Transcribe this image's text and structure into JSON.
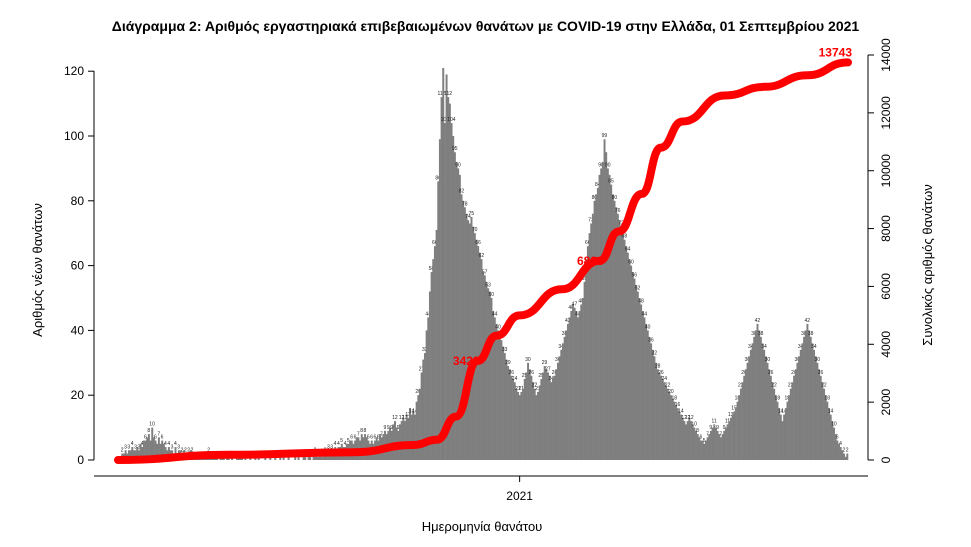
{
  "chart_data": {
    "type": "bar",
    "title": "Διάγραμμα 2: Αριθμός εργαστηριακά επιβεβαιωμένων θανάτων με COVID-19 στην Ελλάδα, 01 Σεπτεμβρίου 2021",
    "xlabel": "Ημερομηνία θανάτου",
    "ylabel": "Αριθμός νέων θανάτων",
    "y2label": "Συνολικός αριθμός θανάτων",
    "x_tick_labels": [
      "2021"
    ],
    "x_tick_year": 2021,
    "x_range": [
      "2020-03-11",
      "2021-08-31"
    ],
    "ylim": [
      0,
      125
    ],
    "y_ticks": [
      0,
      20,
      40,
      60,
      80,
      100,
      120
    ],
    "y2lim": [
      0,
      14000
    ],
    "y2_ticks": [
      0,
      2000,
      4000,
      6000,
      8000,
      10000,
      12000,
      14000
    ],
    "grid": false,
    "bar_color": "#7f7f7f",
    "line_color": "#ff0000",
    "annotations": [
      "3423",
      "6886",
      "13743"
    ],
    "daily_deaths": {
      "note_units": "deaths per day, approximate, read from bar heights",
      "x_start": "2020-03-11",
      "values": [
        1,
        1,
        2,
        2,
        3,
        2,
        3,
        3,
        4,
        3,
        3,
        4,
        3,
        5,
        4,
        6,
        6,
        7,
        8,
        6,
        10,
        7,
        6,
        5,
        7,
        5,
        6,
        5,
        4,
        3,
        4,
        3,
        3,
        2,
        4,
        2,
        3,
        3,
        2,
        3,
        2,
        2,
        2,
        3,
        2,
        2,
        1,
        2,
        1,
        1,
        1,
        2,
        1,
        1,
        2,
        1,
        1,
        1,
        1,
        1,
        0,
        1,
        1,
        1,
        0,
        1,
        1,
        0,
        1,
        0,
        0,
        1,
        1,
        1,
        1,
        0,
        1,
        0,
        0,
        1,
        0,
        0,
        1,
        0,
        1,
        0,
        0,
        0,
        1,
        0,
        0,
        1,
        0,
        0,
        1,
        0,
        0,
        1,
        0,
        1,
        0,
        0,
        1,
        0,
        0,
        0,
        1,
        0,
        1,
        0,
        0,
        1,
        1,
        0,
        1,
        1,
        0,
        1,
        2,
        1,
        1,
        2,
        1,
        2,
        2,
        2,
        3,
        2,
        3,
        3,
        4,
        3,
        4,
        4,
        5,
        4,
        4,
        5,
        5,
        6,
        6,
        5,
        6,
        7,
        7,
        6,
        8,
        7,
        8,
        7,
        6,
        5,
        6,
        5,
        6,
        7,
        6,
        8,
        7,
        8,
        9,
        8,
        9,
        10,
        9,
        11,
        12,
        10,
        9,
        11,
        12,
        13,
        12,
        14,
        13,
        16,
        14,
        15,
        14,
        18,
        20,
        22,
        27,
        31,
        33,
        40,
        44,
        52,
        58,
        62,
        66,
        71,
        86,
        99,
        112,
        121,
        104,
        119,
        112,
        110,
        104,
        100,
        95,
        92,
        90,
        88,
        82,
        80,
        78,
        76,
        74,
        73,
        75,
        72,
        70,
        68,
        66,
        64,
        62,
        58,
        57,
        55,
        53,
        52,
        50,
        46,
        44,
        42,
        40,
        39,
        37,
        35,
        33,
        31,
        29,
        28,
        26,
        25,
        24,
        22,
        21,
        20,
        21,
        22,
        25,
        27,
        30,
        28,
        26,
        24,
        22,
        20,
        21,
        23,
        25,
        27,
        29,
        28,
        27,
        26,
        24,
        25,
        26,
        28,
        30,
        32,
        34,
        36,
        38,
        40,
        42,
        44,
        46,
        48,
        47,
        46,
        44,
        46,
        48,
        50,
        55,
        62,
        66,
        70,
        73,
        76,
        80,
        82,
        84,
        88,
        90,
        92,
        99,
        95,
        90,
        88,
        85,
        82,
        80,
        78,
        76,
        74,
        72,
        70,
        68,
        66,
        64,
        62,
        60,
        58,
        56,
        54,
        52,
        50,
        48,
        46,
        44,
        42,
        40,
        38,
        36,
        34,
        32,
        30,
        28,
        27,
        26,
        25,
        24,
        23,
        22,
        21,
        20,
        19,
        18,
        17,
        16,
        15,
        14,
        13,
        12,
        11,
        12,
        13,
        12,
        11,
        10,
        9,
        8,
        7,
        6,
        6,
        5,
        6,
        7,
        8,
        9,
        10,
        11,
        10,
        9,
        8,
        7,
        8,
        9,
        10,
        11,
        12,
        13,
        14,
        15,
        16,
        18,
        20,
        22,
        24,
        26,
        28,
        30,
        32,
        34,
        36,
        38,
        40,
        42,
        40,
        38,
        36,
        34,
        32,
        30,
        28,
        26,
        24,
        22,
        20,
        18,
        16,
        14,
        12,
        14,
        16,
        18,
        20,
        22,
        24,
        26,
        28,
        30,
        32,
        34,
        36,
        38,
        40,
        42,
        40,
        38,
        36,
        34,
        32,
        30,
        28,
        26,
        24,
        22,
        20,
        18,
        16,
        14,
        12,
        10,
        8,
        6,
        5,
        4,
        3,
        2,
        1,
        2
      ]
    },
    "cumulative_deaths": {
      "note_units": "total deaths, approximate, sampled along the date axis",
      "points": [
        [
          "2020-03-11",
          0
        ],
        [
          "2020-06-01",
          180
        ],
        [
          "2020-09-01",
          270
        ],
        [
          "2020-10-15",
          520
        ],
        [
          "2020-11-01",
          700
        ],
        [
          "2020-11-15",
          1500
        ],
        [
          "2020-12-01",
          3423
        ],
        [
          "2020-12-15",
          4300
        ],
        [
          "2021-01-01",
          5000
        ],
        [
          "2021-02-01",
          5900
        ],
        [
          "2021-03-01",
          6886
        ],
        [
          "2021-03-15",
          7900
        ],
        [
          "2021-04-01",
          9200
        ],
        [
          "2021-04-15",
          10800
        ],
        [
          "2021-05-01",
          11700
        ],
        [
          "2021-06-01",
          12600
        ],
        [
          "2021-07-01",
          12900
        ],
        [
          "2021-08-01",
          13300
        ],
        [
          "2021-08-31",
          13743
        ]
      ]
    }
  }
}
